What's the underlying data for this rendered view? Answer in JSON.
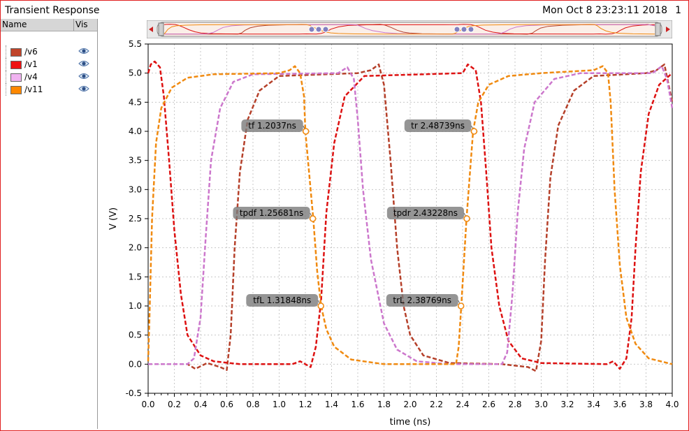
{
  "window": {
    "title": "Transient Response",
    "datetime": "Mon Oct 8 23:23:11 2018",
    "page_number": "1"
  },
  "legend": {
    "name_header": "Name",
    "vis_header": "Vis",
    "items": [
      {
        "label": "/v6",
        "color": "#c0442a"
      },
      {
        "label": "/v1",
        "color": "#ee1111"
      },
      {
        "label": "/v4",
        "color": "#f0b3f0"
      },
      {
        "label": "/v11",
        "color": "#ff8800"
      }
    ]
  },
  "chart_data": {
    "type": "line",
    "xlabel": "time (ns)",
    "ylabel": "V (V)",
    "xlim": [
      0.0,
      4.0
    ],
    "ylim": [
      -0.5,
      5.5
    ],
    "x_ticks": [
      "0.0",
      "0.2",
      "0.4",
      "0.6",
      "0.8",
      "1.0",
      "1.2",
      "1.4",
      "1.6",
      "1.8",
      "2.0",
      "2.2",
      "2.4",
      "2.6",
      "2.8",
      "3.0",
      "3.2",
      "3.4",
      "3.6",
      "3.8",
      "4.0"
    ],
    "y_ticks": [
      "5.5",
      "5.0",
      "4.5",
      "4.0",
      "3.5",
      "3.0",
      "2.5",
      "2.0",
      "1.5",
      "1.0",
      "0.5",
      "0.0",
      "-0.5"
    ],
    "grid": true,
    "series": [
      {
        "name": "/v6",
        "color": "#b5402a",
        "points": [
          [
            0,
            0
          ],
          [
            0.3,
            0
          ],
          [
            0.36,
            -0.08
          ],
          [
            0.45,
            0.02
          ],
          [
            0.55,
            -0.05
          ],
          [
            0.6,
            -0.1
          ],
          [
            0.63,
            0.5
          ],
          [
            0.66,
            2.0
          ],
          [
            0.7,
            3.3
          ],
          [
            0.76,
            4.2
          ],
          [
            0.85,
            4.7
          ],
          [
            1.0,
            4.95
          ],
          [
            1.6,
            5.0
          ],
          [
            1.7,
            5.05
          ],
          [
            1.76,
            5.15
          ],
          [
            1.8,
            4.8
          ],
          [
            1.85,
            3.5
          ],
          [
            1.9,
            2.0
          ],
          [
            1.95,
            1.0
          ],
          [
            2.0,
            0.5
          ],
          [
            2.1,
            0.15
          ],
          [
            2.3,
            0.02
          ],
          [
            2.7,
            0
          ],
          [
            2.9,
            -0.05
          ],
          [
            2.96,
            -0.12
          ],
          [
            3.0,
            0.4
          ],
          [
            3.03,
            1.8
          ],
          [
            3.07,
            3.2
          ],
          [
            3.13,
            4.1
          ],
          [
            3.25,
            4.7
          ],
          [
            3.4,
            4.95
          ],
          [
            3.8,
            5.0
          ],
          [
            3.88,
            5.05
          ],
          [
            3.94,
            5.15
          ],
          [
            4.0,
            4.5
          ]
        ]
      },
      {
        "name": "/v1",
        "color": "#dd1111",
        "points": [
          [
            0,
            5.0
          ],
          [
            0.02,
            5.15
          ],
          [
            0.05,
            5.2
          ],
          [
            0.09,
            5.1
          ],
          [
            0.12,
            4.6
          ],
          [
            0.16,
            3.5
          ],
          [
            0.2,
            2.3
          ],
          [
            0.25,
            1.2
          ],
          [
            0.3,
            0.5
          ],
          [
            0.4,
            0.15
          ],
          [
            0.5,
            0.05
          ],
          [
            0.7,
            0
          ],
          [
            1.1,
            0
          ],
          [
            1.16,
            0.05
          ],
          [
            1.24,
            -0.05
          ],
          [
            1.28,
            0.3
          ],
          [
            1.32,
            1.1
          ],
          [
            1.36,
            2.6
          ],
          [
            1.42,
            3.8
          ],
          [
            1.5,
            4.6
          ],
          [
            1.65,
            4.95
          ],
          [
            2.4,
            5.0
          ],
          [
            2.44,
            5.15
          ],
          [
            2.5,
            5.05
          ],
          [
            2.54,
            4.5
          ],
          [
            2.58,
            3.3
          ],
          [
            2.62,
            2.0
          ],
          [
            2.68,
            1.0
          ],
          [
            2.75,
            0.4
          ],
          [
            2.85,
            0.1
          ],
          [
            3.0,
            0.02
          ],
          [
            3.5,
            0
          ],
          [
            3.55,
            0.05
          ],
          [
            3.6,
            -0.08
          ],
          [
            3.65,
            0.1
          ],
          [
            3.69,
            0.8
          ],
          [
            3.72,
            2.0
          ],
          [
            3.76,
            3.3
          ],
          [
            3.82,
            4.3
          ],
          [
            3.9,
            4.8
          ],
          [
            4.0,
            5.0
          ]
        ]
      },
      {
        "name": "/v4",
        "color": "#cc77cc",
        "points": [
          [
            0,
            0
          ],
          [
            0.3,
            0
          ],
          [
            0.35,
            0.1
          ],
          [
            0.4,
            0.8
          ],
          [
            0.44,
            2.2
          ],
          [
            0.48,
            3.5
          ],
          [
            0.55,
            4.4
          ],
          [
            0.65,
            4.85
          ],
          [
            0.8,
            4.98
          ],
          [
            1.45,
            5.0
          ],
          [
            1.52,
            5.1
          ],
          [
            1.57,
            4.9
          ],
          [
            1.6,
            4.2
          ],
          [
            1.64,
            3.0
          ],
          [
            1.7,
            1.8
          ],
          [
            1.8,
            0.7
          ],
          [
            1.9,
            0.25
          ],
          [
            2.05,
            0.05
          ],
          [
            2.3,
            0
          ],
          [
            2.7,
            0
          ],
          [
            2.74,
            0.2
          ],
          [
            2.78,
            1.2
          ],
          [
            2.82,
            2.6
          ],
          [
            2.87,
            3.7
          ],
          [
            2.95,
            4.5
          ],
          [
            3.1,
            4.9
          ],
          [
            3.3,
            5.0
          ],
          [
            3.85,
            5.0
          ],
          [
            3.92,
            5.12
          ],
          [
            3.96,
            4.9
          ],
          [
            4.0,
            4.4
          ]
        ]
      },
      {
        "name": "/v11",
        "color": "#f08a10",
        "points": [
          [
            0,
            0.05
          ],
          [
            0.01,
            0.8
          ],
          [
            0.03,
            2.5
          ],
          [
            0.06,
            3.8
          ],
          [
            0.1,
            4.4
          ],
          [
            0.18,
            4.75
          ],
          [
            0.3,
            4.92
          ],
          [
            0.5,
            4.98
          ],
          [
            1.0,
            5.0
          ],
          [
            1.08,
            5.05
          ],
          [
            1.12,
            5.12
          ],
          [
            1.16,
            5.0
          ],
          [
            1.19,
            4.6
          ],
          [
            1.2,
            4.0
          ],
          [
            1.24,
            3.0
          ],
          [
            1.26,
            2.5
          ],
          [
            1.29,
            1.6
          ],
          [
            1.32,
            1.0
          ],
          [
            1.36,
            0.6
          ],
          [
            1.42,
            0.3
          ],
          [
            1.55,
            0.08
          ],
          [
            1.8,
            0
          ],
          [
            2.35,
            0
          ],
          [
            2.37,
            0.3
          ],
          [
            2.39,
            1.0
          ],
          [
            2.43,
            2.5
          ],
          [
            2.48,
            4.0
          ],
          [
            2.52,
            4.5
          ],
          [
            2.6,
            4.8
          ],
          [
            2.75,
            4.95
          ],
          [
            3.0,
            5.0
          ],
          [
            3.4,
            5.05
          ],
          [
            3.47,
            5.12
          ],
          [
            3.51,
            5.0
          ],
          [
            3.53,
            4.5
          ],
          [
            3.56,
            3.0
          ],
          [
            3.6,
            1.7
          ],
          [
            3.65,
            0.8
          ],
          [
            3.72,
            0.35
          ],
          [
            3.82,
            0.1
          ],
          [
            4.0,
            0
          ]
        ]
      }
    ],
    "markers": [
      {
        "label": "tf 1.2037ns",
        "x": 1.2037,
        "y": 4.0,
        "color": "#f08a10"
      },
      {
        "label": "tpdf 1.25681ns",
        "x": 1.25681,
        "y": 2.5,
        "color": "#f08a10"
      },
      {
        "label": "tfL 1.31848ns",
        "x": 1.31848,
        "y": 1.0,
        "color": "#f08a10"
      },
      {
        "label": "tr 2.48739ns",
        "x": 2.48739,
        "y": 4.0,
        "color": "#f08a10"
      },
      {
        "label": "tpdr 2.43228ns",
        "x": 2.43228,
        "y": 2.5,
        "color": "#f08a10"
      },
      {
        "label": "trL 2.38769ns",
        "x": 2.38769,
        "y": 1.0,
        "color": "#f08a10"
      }
    ]
  }
}
